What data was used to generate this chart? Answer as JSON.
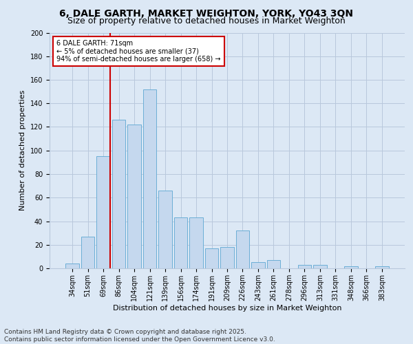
{
  "title_line1": "6, DALE GARTH, MARKET WEIGHTON, YORK, YO43 3QN",
  "title_line2": "Size of property relative to detached houses in Market Weighton",
  "xlabel": "Distribution of detached houses by size in Market Weighton",
  "ylabel": "Number of detached properties",
  "footer": "Contains HM Land Registry data © Crown copyright and database right 2025.\nContains public sector information licensed under the Open Government Licence v3.0.",
  "categories": [
    "34sqm",
    "51sqm",
    "69sqm",
    "86sqm",
    "104sqm",
    "121sqm",
    "139sqm",
    "156sqm",
    "174sqm",
    "191sqm",
    "209sqm",
    "226sqm",
    "243sqm",
    "261sqm",
    "278sqm",
    "296sqm",
    "313sqm",
    "331sqm",
    "348sqm",
    "366sqm",
    "383sqm"
  ],
  "values": [
    4,
    27,
    95,
    126,
    122,
    152,
    66,
    43,
    43,
    17,
    18,
    32,
    5,
    7,
    0,
    3,
    3,
    0,
    2,
    0,
    2
  ],
  "bar_color": "#c5d8ee",
  "bar_edge_color": "#6baed6",
  "background_color": "#dce8f5",
  "vline_color": "#cc0000",
  "annotation_text": "6 DALE GARTH: 71sqm\n← 5% of detached houses are smaller (37)\n94% of semi-detached houses are larger (658) →",
  "annotation_box_color": "#ffffff",
  "annotation_box_edge_color": "#cc0000",
  "ylim": [
    0,
    200
  ],
  "yticks": [
    0,
    20,
    40,
    60,
    80,
    100,
    120,
    140,
    160,
    180,
    200
  ],
  "grid_color": "#b8c8dc",
  "title_fontsize": 10,
  "subtitle_fontsize": 9,
  "axis_label_fontsize": 8,
  "tick_fontsize": 7,
  "annotation_fontsize": 7,
  "footer_fontsize": 6.5
}
